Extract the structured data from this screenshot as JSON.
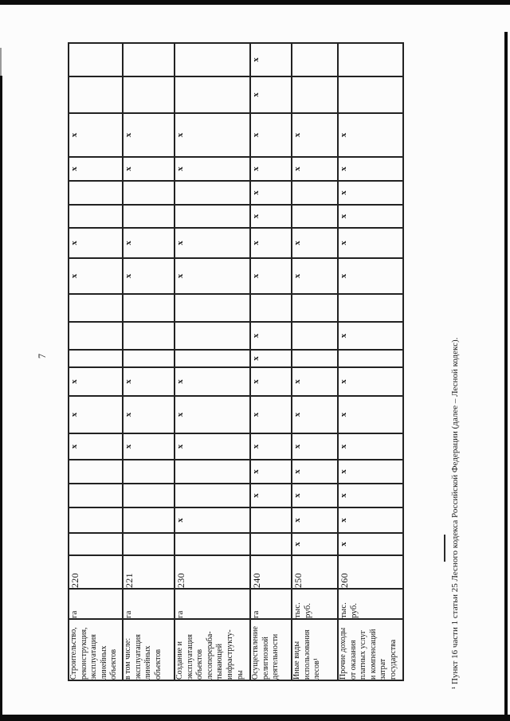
{
  "page": {
    "number": "7"
  },
  "footnote": {
    "text": "¹ Пункт 16 части 1 статьи 25 Лесного кодекса Российской Федерации (далее – Лесной кодекс)."
  },
  "table": {
    "mark_char": "х",
    "num_data_columns": 18,
    "rows": [
      {
        "name": "Строительство,\nреконструкция,\nэксплуатация\nлинейных\nобъектов",
        "unit": "га",
        "code": "220",
        "x_columns": [
          5,
          6,
          7,
          11,
          12,
          15,
          16
        ]
      },
      {
        "name": "в том числе:\nэксплуатация\nлинейных\nобъектов",
        "unit": "га",
        "code": "221",
        "x_columns": [
          5,
          6,
          7,
          11,
          12,
          15,
          16
        ]
      },
      {
        "name": "Создание и\nэксплуатация\nобъектов\nлесоперераба-\nтывающей\nинфраструкту-\nры",
        "unit": "га",
        "code": "230",
        "x_columns": [
          2,
          5,
          6,
          7,
          11,
          12,
          15,
          16
        ]
      },
      {
        "name": "Осуществление\nрелигиозной\nдеятельности",
        "unit": "га",
        "code": "240",
        "x_columns": [
          3,
          4,
          5,
          6,
          7,
          8,
          9,
          11,
          12,
          13,
          14,
          15,
          16,
          17,
          18
        ]
      },
      {
        "name": "Иные виды\nиспользования\nлесов¹",
        "unit": "тыс.\nруб.",
        "code": "250",
        "x_columns": [
          1,
          2,
          3,
          4,
          5,
          6,
          7,
          11,
          12,
          15,
          16
        ]
      },
      {
        "name": "Прочие доходы\nот оказания\nплатных услуг\nи компенсаций\nзатрат\nгосударства",
        "unit": "тыс.\nруб.",
        "code": "260",
        "x_columns": [
          1,
          2,
          3,
          4,
          5,
          6,
          7,
          9,
          11,
          12,
          13,
          14,
          15,
          16
        ]
      }
    ]
  }
}
